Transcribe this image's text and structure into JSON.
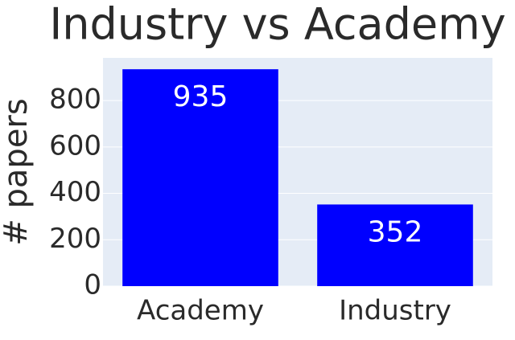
{
  "chart_data": {
    "type": "bar",
    "title": "Industry vs Academy",
    "y_label": "# papers",
    "categories": [
      "Academy",
      "Industry"
    ],
    "values": [
      935,
      352
    ],
    "color": "#0000ff",
    "ylim": [
      0,
      984
    ],
    "yticks": [
      0,
      200,
      400,
      600,
      800
    ],
    "grid": true
  }
}
